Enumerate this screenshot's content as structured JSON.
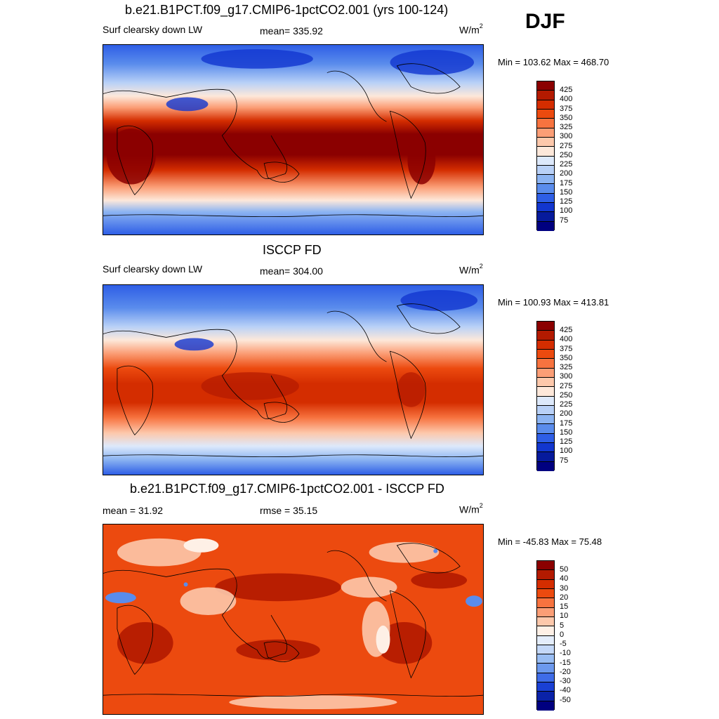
{
  "season": "DJF",
  "panels": [
    {
      "id": "model",
      "title": "b.e21.B1PCT.f09_g17.CMIP6-1pctCO2.001 (yrs 100-124)",
      "left_label": "Surf clearsky down LW",
      "center_label": "mean= 335.92",
      "units": "W/m",
      "units_sup": "2",
      "minmax": "Min = 103.62 Max = 468.70",
      "colorbar_labels": [
        "425",
        "400",
        "375",
        "350",
        "325",
        "300",
        "275",
        "250",
        "225",
        "200",
        "175",
        "150",
        "125",
        "100",
        "75"
      ]
    },
    {
      "id": "obs",
      "title": "ISCCP FD",
      "left_label": "Surf clearsky down LW",
      "center_label": "mean= 304.00",
      "units": "W/m",
      "units_sup": "2",
      "minmax": "Min = 100.93 Max = 413.81",
      "colorbar_labels": [
        "425",
        "400",
        "375",
        "350",
        "325",
        "300",
        "275",
        "250",
        "225",
        "200",
        "175",
        "150",
        "125",
        "100",
        "75"
      ]
    },
    {
      "id": "diff",
      "title": "b.e21.B1PCT.f09_g17.CMIP6-1pctCO2.001 - ISCCP FD",
      "left_label": "mean =  31.92",
      "center_label": "rmse =  35.15",
      "units": "W/m",
      "units_sup": "2",
      "minmax": "Min = -45.83 Max =  75.48",
      "colorbar_labels": [
        "50",
        "40",
        "30",
        "20",
        "15",
        "10",
        "5",
        "0",
        "-5",
        "-10",
        "-15",
        "-20",
        "-30",
        "-40",
        "-50"
      ]
    }
  ],
  "colors": {
    "abs_scale": [
      "#8b0000",
      "#b31a00",
      "#d42d00",
      "#ec4a0f",
      "#f7733f",
      "#fb9e76",
      "#fdc8ab",
      "#fde8da",
      "#dde9fb",
      "#b9d1f7",
      "#8cb4f2",
      "#5a8cec",
      "#2e5ee6",
      "#1236cf",
      "#061a9c",
      "#000080"
    ],
    "diff_scale": [
      "#8b0000",
      "#b31a00",
      "#d42d00",
      "#ec4a0f",
      "#f7733f",
      "#fb9e76",
      "#fdc8ab",
      "#fef0e6",
      "#e4edfb",
      "#c4d8f8",
      "#99bdf3",
      "#6c99ee",
      "#3f6ce8",
      "#1a40d4",
      "#0a22a8",
      "#000080"
    ]
  }
}
